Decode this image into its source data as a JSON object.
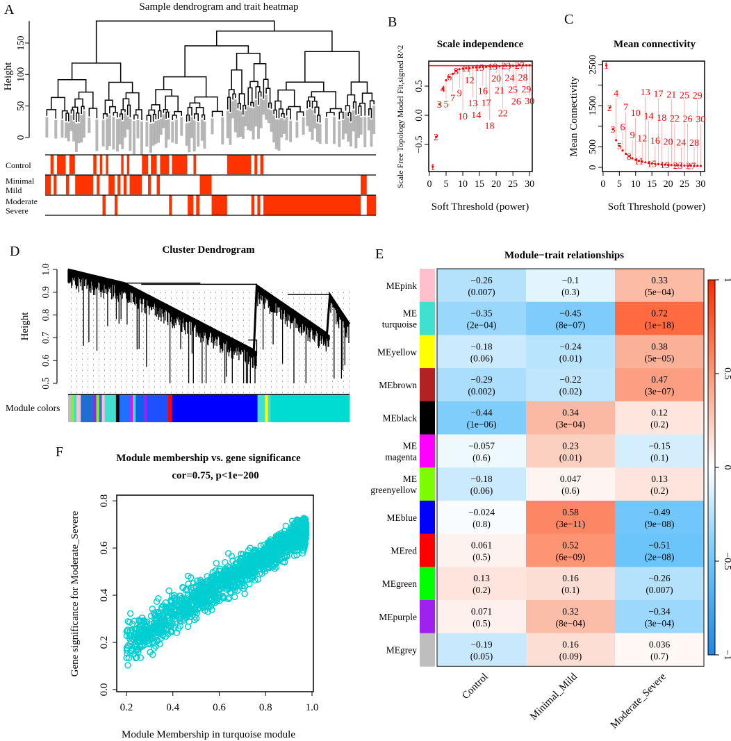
{
  "panel_labels": {
    "A": "A",
    "B": "B",
    "C": "C",
    "D": "D",
    "E": "E",
    "F": "F"
  },
  "chart_data": [
    {
      "id": "A",
      "type": "heatmap",
      "title": "Sample dendrogram and trait heatmap",
      "ylabel": "Height",
      "yticks": [
        "0",
        "50",
        "100",
        "150"
      ],
      "ytick_values": [
        0,
        50,
        100,
        150
      ],
      "trait_color": "#ff3300",
      "traits": [
        {
          "lines": [
            "Control"
          ]
        },
        {
          "lines": [
            "Minimal",
            "Mild"
          ]
        },
        {
          "lines": [
            "Moderate",
            "Severe"
          ]
        }
      ]
    },
    {
      "id": "B",
      "type": "scatter",
      "title": "Scale independence",
      "xlabel": "Soft Threshold (power)",
      "ylabel": "Scale Free Topology Model Fit,signed R^2",
      "xticks": [
        "0",
        "5",
        "10",
        "15",
        "20",
        "25",
        "30"
      ],
      "xtick_values": [
        0,
        5,
        10,
        15,
        20,
        25,
        30
      ],
      "yticks": [
        "−0.5",
        "0.0",
        "0.5"
      ],
      "ytick_values": [
        -0.5,
        0,
        0.5
      ],
      "xlim": [
        -0.2,
        30.8
      ],
      "ylim": [
        -0.964,
        0.929
      ],
      "cutoff": 0.85,
      "color": "#ff0000",
      "x": [
        1,
        2,
        3,
        4,
        5,
        6,
        7,
        8,
        9,
        10,
        11,
        12,
        13,
        14,
        15,
        16,
        17,
        18,
        19,
        20,
        21,
        22,
        23,
        24,
        25,
        26,
        27,
        28,
        29,
        30
      ],
      "y": [
        -0.88,
        -0.37,
        0.19,
        0.46,
        0.6,
        0.66,
        0.71,
        0.76,
        0.79,
        0.8,
        0.81,
        0.81,
        0.82,
        0.82,
        0.82,
        0.83,
        0.83,
        0.84,
        0.84,
        0.84,
        0.84,
        0.85,
        0.85,
        0.85,
        0.85,
        0.85,
        0.86,
        0.86,
        0.86,
        0.86
      ]
    },
    {
      "id": "C",
      "type": "scatter",
      "title": "Mean connectivity",
      "xlabel": "Soft Threshold (power)",
      "ylabel": "Mean Connectivity",
      "xticks": [
        "0",
        "5",
        "10",
        "15",
        "20",
        "25",
        "30"
      ],
      "xtick_values": [
        0,
        5,
        10,
        15,
        20,
        25,
        30
      ],
      "yticks": [
        "0",
        "500",
        "1500",
        "2500"
      ],
      "ytick_values": [
        0,
        500,
        1000,
        1500,
        2000,
        2500
      ],
      "ytick_label_values": [
        0,
        500,
        1500,
        2500
      ],
      "xlim": [
        -0.2,
        31.2
      ],
      "ylim": [
        -101,
        2584
      ],
      "color": "#ff0000",
      "x": [
        1,
        2,
        3,
        4,
        5,
        6,
        7,
        8,
        9,
        10,
        11,
        12,
        13,
        14,
        15,
        16,
        17,
        18,
        19,
        20,
        21,
        22,
        23,
        24,
        25,
        26,
        27,
        28,
        29,
        30
      ],
      "y": [
        2480,
        1450,
        930,
        660,
        520,
        410,
        330,
        270,
        220,
        185,
        160,
        140,
        122,
        108,
        96,
        86,
        78,
        71,
        65,
        60,
        56,
        52,
        49,
        46,
        44,
        42,
        40,
        38,
        36,
        35
      ]
    },
    {
      "id": "D",
      "type": "dendrogram",
      "title": "Cluster Dendrogram",
      "ylabel": "Height",
      "yticks": [
        "0.5",
        "0.6",
        "0.7",
        "0.8",
        "0.9",
        "1.0"
      ],
      "ytick_values": [
        0.5,
        0.6,
        0.7,
        0.8,
        0.9,
        1.0
      ],
      "ylim": [
        0.5,
        1.0
      ],
      "colorbar_label": "Module colors"
    },
    {
      "id": "E",
      "type": "heatmap",
      "title": "Module−trait relationships",
      "columns": [
        "Control",
        "Minimal_Mild",
        "Moderate_Severe"
      ],
      "colorbar_ticks": [
        "1",
        "0.5",
        "0",
        "−0.5",
        "−1"
      ],
      "colorbar_tick_values": [
        1,
        0.5,
        0,
        -0.5,
        -1
      ],
      "colors": {
        "low": "#1e88e5",
        "mid": "#ffffff",
        "high": "#ff2a00"
      },
      "rows": [
        {
          "lines": [
            "MEpink"
          ],
          "color": "#ffc0cb",
          "cells": [
            {
              "r": -0.26,
              "r_label": "−0.26",
              "p": "(0.007)"
            },
            {
              "r": -0.1,
              "r_label": "−0.1",
              "p": "(0.3)"
            },
            {
              "r": 0.33,
              "r_label": "0.33",
              "p": "(5e−04)"
            }
          ]
        },
        {
          "lines": [
            "ME",
            "turquoise"
          ],
          "color": "#40e0d0",
          "cells": [
            {
              "r": -0.35,
              "r_label": "−0.35",
              "p": "(2e−04)"
            },
            {
              "r": -0.45,
              "r_label": "−0.45",
              "p": "(8e−07)"
            },
            {
              "r": 0.72,
              "r_label": "0.72",
              "p": "(1e−18)"
            }
          ]
        },
        {
          "lines": [
            "MEyellow"
          ],
          "color": "#ffff00",
          "cells": [
            {
              "r": -0.18,
              "r_label": "−0.18",
              "p": "(0.06)"
            },
            {
              "r": -0.24,
              "r_label": "−0.24",
              "p": "(0.01)"
            },
            {
              "r": 0.38,
              "r_label": "0.38",
              "p": "(5e−05)"
            }
          ]
        },
        {
          "lines": [
            "MEbrown"
          ],
          "color": "#b22222",
          "cells": [
            {
              "r": -0.29,
              "r_label": "−0.29",
              "p": "(0.002)"
            },
            {
              "r": -0.22,
              "r_label": "−0.22",
              "p": "(0.02)"
            },
            {
              "r": 0.47,
              "r_label": "0.47",
              "p": "(3e−07)"
            }
          ]
        },
        {
          "lines": [
            "MEblack"
          ],
          "color": "#000000",
          "cells": [
            {
              "r": -0.44,
              "r_label": "−0.44",
              "p": "(1e−06)"
            },
            {
              "r": 0.34,
              "r_label": "0.34",
              "p": "(3e−04)"
            },
            {
              "r": 0.12,
              "r_label": "0.12",
              "p": "(0.2)"
            }
          ]
        },
        {
          "lines": [
            "ME",
            "magenta"
          ],
          "color": "#ff00ff",
          "cells": [
            {
              "r": -0.057,
              "r_label": "−0.057",
              "p": "(0.6)"
            },
            {
              "r": 0.23,
              "r_label": "0.23",
              "p": "(0.01)"
            },
            {
              "r": -0.15,
              "r_label": "−0.15",
              "p": "(0.1)"
            }
          ]
        },
        {
          "lines": [
            "ME",
            "greenyellow"
          ],
          "color": "#7cfc00",
          "cells": [
            {
              "r": -0.18,
              "r_label": "−0.18",
              "p": "(0.06)"
            },
            {
              "r": 0.047,
              "r_label": "0.047",
              "p": "(0.6)"
            },
            {
              "r": 0.13,
              "r_label": "0.13",
              "p": "(0.2)"
            }
          ]
        },
        {
          "lines": [
            "MEblue"
          ],
          "color": "#0000ff",
          "cells": [
            {
              "r": -0.024,
              "r_label": "−0.024",
              "p": "(0.8)"
            },
            {
              "r": 0.58,
              "r_label": "0.58",
              "p": "(3e−11)"
            },
            {
              "r": -0.49,
              "r_label": "−0.49",
              "p": "(9e−08)"
            }
          ]
        },
        {
          "lines": [
            "MEred"
          ],
          "color": "#ff0000",
          "cells": [
            {
              "r": 0.061,
              "r_label": "0.061",
              "p": "(0.5)"
            },
            {
              "r": 0.52,
              "r_label": "0.52",
              "p": "(6e−09)"
            },
            {
              "r": -0.51,
              "r_label": "−0.51",
              "p": "(2e−08)"
            }
          ]
        },
        {
          "lines": [
            "MEgreen"
          ],
          "color": "#00ff00",
          "cells": [
            {
              "r": 0.13,
              "r_label": "0.13",
              "p": "(0.2)"
            },
            {
              "r": 0.16,
              "r_label": "0.16",
              "p": "(0.1)"
            },
            {
              "r": -0.26,
              "r_label": "−0.26",
              "p": "(0.007)"
            }
          ]
        },
        {
          "lines": [
            "MEpurple"
          ],
          "color": "#a020f0",
          "cells": [
            {
              "r": 0.071,
              "r_label": "0.071",
              "p": "(0.5)"
            },
            {
              "r": 0.32,
              "r_label": "0.32",
              "p": "(8e−04)"
            },
            {
              "r": -0.34,
              "r_label": "−0.34",
              "p": "(3e−04)"
            }
          ]
        },
        {
          "lines": [
            "MEgrey"
          ],
          "color": "#bebebe",
          "cells": [
            {
              "r": -0.19,
              "r_label": "−0.19",
              "p": "(0.05)"
            },
            {
              "r": 0.16,
              "r_label": "0.16",
              "p": "(0.09)"
            },
            {
              "r": 0.036,
              "r_label": "0.036",
              "p": "(0.7)"
            }
          ]
        }
      ]
    },
    {
      "id": "F",
      "type": "scatter",
      "title": "Module membership vs. gene significance",
      "subtitle": "cor=0.75, p<1e−200",
      "xlabel": "Module Membership in turquoise module",
      "ylabel": "Gene significance for Moderate_Severe",
      "xticks": [
        "0.2",
        "0.4",
        "0.6",
        "0.8",
        "1.0"
      ],
      "xtick_values": [
        0.2,
        0.4,
        0.6,
        0.8,
        1.0
      ],
      "yticks": [
        "0.0",
        "0.2",
        "0.4",
        "0.6",
        "0.8"
      ],
      "ytick_values": [
        0,
        0.2,
        0.4,
        0.6,
        0.8
      ],
      "xlim": [
        0.158,
        1.006
      ],
      "ylim": [
        -0.009,
        0.824
      ],
      "color": "#00ced1",
      "correlation": 0.75
    }
  ]
}
